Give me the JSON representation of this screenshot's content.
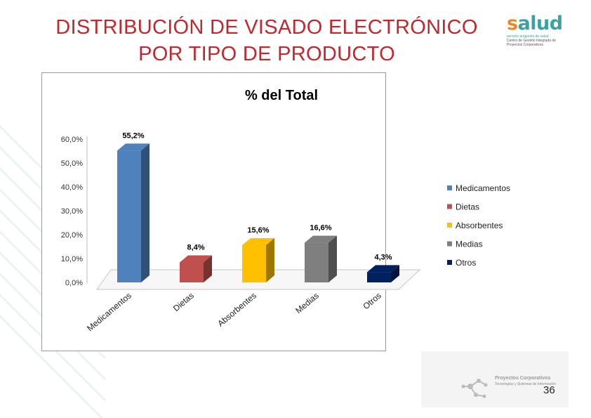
{
  "slide": {
    "title_line1": "DISTRIBUCIÓN DE VISADO ELECTRÓNICO",
    "title_line2": "POR TIPO DE PRODUCTO",
    "page_number": "36"
  },
  "logo": {
    "word_s": "s",
    "word_rest": "alud",
    "sub1": "servicio aragonés de salud",
    "sub2": "Centro de Gestión Integrada de Proyectos Corporativos"
  },
  "footer": {
    "brand": "Proyectos Corporativos",
    "sub": "Tecnologías y Sistemas de Información"
  },
  "chart_data": {
    "type": "bar",
    "title": "% del Total",
    "categories": [
      "Medicamentos",
      "Dietas",
      "Absorbentes",
      "Medias",
      "Otros"
    ],
    "values": [
      55.2,
      8.4,
      15.6,
      16.6,
      4.3
    ],
    "value_labels": [
      "55,2%",
      "8,4%",
      "15,6%",
      "16,6%",
      "4,3%"
    ],
    "colors": [
      "#4f81bd",
      "#c0504d",
      "#ffc000",
      "#7f7f7f",
      "#002060"
    ],
    "yticks": [
      "0,0%",
      "10,0%",
      "20,0%",
      "30,0%",
      "40,0%",
      "50,0%",
      "60,0%"
    ],
    "ylim": [
      0,
      60
    ],
    "legend": [
      "Medicamentos",
      "Dietas",
      "Absorbentes",
      "Medias",
      "Otros"
    ],
    "legend_position": "right",
    "style": "3d-column"
  }
}
